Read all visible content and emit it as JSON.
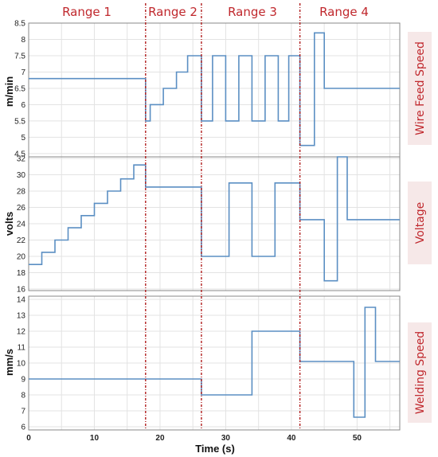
{
  "chart_data": {
    "type": "line",
    "ranges": [
      "Range 1",
      "Range 2",
      "Range 3",
      "Range 4"
    ],
    "range_boundaries_s": [
      17.8,
      26.3,
      41.3
    ],
    "xlabel": "Time (s)",
    "xlim": [
      0,
      56.5
    ],
    "xticks": [
      "0",
      "10",
      "20",
      "30",
      "40",
      "50"
    ],
    "grid": true,
    "line_color": "#5b8fc3",
    "boundary_color": "#b01c1c",
    "label_color": "#c0282d",
    "panels": [
      {
        "name": "Wire Feed Speed",
        "ylabel": "m/min",
        "ylim": [
          4.4,
          8.5
        ],
        "yticks": [
          "4.5",
          "5",
          "5.5",
          "6",
          "6.5",
          "7",
          "7.5",
          "8",
          "8.5"
        ],
        "x": [
          0,
          17.8,
          17.8,
          18.5,
          18.5,
          20.5,
          20.5,
          22.5,
          22.5,
          24.2,
          24.2,
          26.3,
          26.3,
          28,
          28,
          30,
          30,
          32,
          32,
          34,
          34,
          36,
          36,
          38,
          38,
          39.6,
          39.6,
          41.3,
          41.3,
          43.5,
          43.5,
          45,
          45,
          56.5
        ],
        "values": [
          6.8,
          6.8,
          5.5,
          5.5,
          6,
          6,
          6.5,
          6.5,
          7,
          7,
          7.5,
          7.5,
          5.5,
          5.5,
          7.5,
          7.5,
          5.5,
          5.5,
          7.5,
          7.5,
          5.5,
          5.5,
          7.5,
          7.5,
          5.5,
          5.5,
          7.5,
          7.5,
          4.75,
          4.75,
          8.2,
          8.2,
          6.5,
          6.5
        ]
      },
      {
        "name": "Voltage",
        "ylabel": "volts",
        "ylim": [
          15.8,
          32.2
        ],
        "yticks": [
          "16",
          "18",
          "20",
          "22",
          "24",
          "26",
          "28",
          "30",
          "32"
        ],
        "x": [
          0,
          2,
          2,
          4,
          4,
          6,
          6,
          8,
          8,
          10,
          10,
          12,
          12,
          14,
          14,
          16,
          16,
          17.8,
          17.8,
          26.3,
          26.3,
          30.5,
          30.5,
          34,
          34,
          37.5,
          37.5,
          41.3,
          41.3,
          45,
          45,
          47,
          47,
          48.5,
          48.5,
          56.5
        ],
        "values": [
          19,
          19,
          20.5,
          20.5,
          22,
          22,
          23.5,
          23.5,
          25,
          25,
          26.5,
          26.5,
          28,
          28,
          29.5,
          29.5,
          31.2,
          31.2,
          28.5,
          28.5,
          20,
          20,
          29,
          29,
          20,
          20,
          29,
          29,
          24.5,
          24.5,
          17,
          17,
          32.2,
          32.2,
          24.5,
          24.5
        ]
      },
      {
        "name": "Welding Speed",
        "ylabel": "mm/s",
        "ylim": [
          5.8,
          14.2
        ],
        "yticks": [
          "6",
          "7",
          "8",
          "9",
          "10",
          "11",
          "12",
          "13",
          "14"
        ],
        "x": [
          0,
          26.3,
          26.3,
          34,
          34,
          41.3,
          41.3,
          49.5,
          49.5,
          51.2,
          51.2,
          52.8,
          52.8,
          56.5
        ],
        "values": [
          9,
          9,
          8,
          8,
          12,
          12,
          10.1,
          10.1,
          6.6,
          6.6,
          13.5,
          13.5,
          10.1,
          10.1
        ]
      }
    ]
  }
}
